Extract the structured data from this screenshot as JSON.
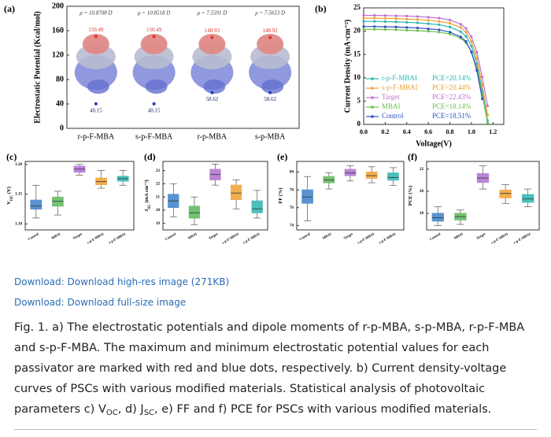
{
  "chart_data": [
    {
      "type": "dot",
      "panel": "(a)",
      "ylabel": "Electrostatic Potential (Kcal/mol)",
      "categories": [
        "r-p-F-MBA",
        "s-p-F-MBA",
        "r-p-MBA",
        "s-p-MBA"
      ],
      "dipole_labels": [
        "μ = 10.8708 D",
        "μ = 10.8518 D",
        "μ = 7.5591 D",
        "μ = 7.5653 D"
      ],
      "max_values": [
        150.49,
        150.49,
        148.93,
        148.92
      ],
      "min_values": [
        40.15,
        40.15,
        58.62,
        58.62
      ],
      "max_color": "#e0302a",
      "min_color": "#1f3fbf",
      "ylim": [
        0,
        200
      ],
      "yticks": [
        0,
        40,
        80,
        120,
        160,
        200
      ]
    },
    {
      "type": "line",
      "panel": "(b)",
      "xlabel": "Voltage(V)",
      "ylabel": "Current Density (mA·cm⁻²)",
      "x": [
        0,
        0.1,
        0.2,
        0.3,
        0.4,
        0.5,
        0.6,
        0.7,
        0.8,
        0.9,
        0.95,
        1.0,
        1.05,
        1.1,
        1.15,
        1.2
      ],
      "series": [
        {
          "name": "r-p-F-MBAI",
          "pce_label": "PCE=20.14%",
          "color": "#2bb5b0",
          "values": [
            22.1,
            22.1,
            22.05,
            22,
            21.9,
            21.8,
            21.6,
            21.4,
            20.9,
            19.9,
            18.9,
            16.8,
            13.0,
            7.2,
            0.8,
            null
          ]
        },
        {
          "name": "s-p-F-MBAI",
          "pce_label": "PCE=20.44%",
          "color": "#f0a030",
          "values": [
            22.8,
            22.8,
            22.75,
            22.7,
            22.6,
            22.5,
            22.35,
            22.1,
            21.7,
            20.8,
            19.8,
            17.8,
            14.2,
            8.5,
            2.0,
            null
          ]
        },
        {
          "name": "Target",
          "pce_label": "PCE=22.43%",
          "color": "#c070d0",
          "values": [
            23.4,
            23.4,
            23.35,
            23.3,
            23.25,
            23.15,
            23.0,
            22.8,
            22.4,
            21.5,
            20.6,
            18.8,
            15.5,
            10.2,
            4.0,
            null
          ]
        },
        {
          "name": "MBAI",
          "pce_label": "PCE=18.14%",
          "color": "#6cc04a",
          "values": [
            20.4,
            20.4,
            20.35,
            20.3,
            20.2,
            20.1,
            20.0,
            19.8,
            19.4,
            18.5,
            17.5,
            15.6,
            12.0,
            6.3,
            0.3,
            null
          ]
        },
        {
          "name": "Control",
          "pce_label": "PCE=18.51%",
          "color": "#3050c0",
          "values": [
            21.0,
            21.0,
            20.95,
            20.9,
            20.8,
            20.7,
            20.5,
            20.3,
            19.8,
            18.8,
            17.8,
            15.5,
            11.6,
            5.5,
            null,
            null
          ]
        }
      ],
      "legend": "lower left",
      "xlim": [
        0,
        1.3
      ],
      "xticks": [
        {
          "value": 0,
          "label": "0.0"
        },
        0.2,
        0.4,
        0.6,
        0.8,
        {
          "value": 1,
          "label": "1.0"
        },
        1.2
      ],
      "ylim": [
        0,
        25
      ],
      "yticks": [
        0,
        5,
        10,
        15,
        20,
        25
      ]
    },
    {
      "type": "box",
      "panel": "(c)",
      "ylabel_parts": [
        "V",
        "OC",
        " (V)"
      ],
      "categories": [
        "Control",
        "MBAI",
        "Target",
        "s-p-F-MBAI",
        "r-p-F-MBAI"
      ],
      "colors": [
        "#3d7fc8",
        "#5cb85c",
        "#b070d0",
        "#f0a030",
        "#2bb5b0"
      ],
      "boxes": [
        {
          "min": 1.11,
          "q1": 1.125,
          "median": 1.13,
          "q3": 1.14,
          "max": 1.165
        },
        {
          "min": 1.115,
          "q1": 1.13,
          "median": 1.138,
          "q3": 1.145,
          "max": 1.155
        },
        {
          "min": 1.182,
          "q1": 1.187,
          "median": 1.192,
          "q3": 1.197,
          "max": 1.2
        },
        {
          "min": 1.16,
          "q1": 1.166,
          "median": 1.171,
          "q3": 1.177,
          "max": 1.19
        },
        {
          "min": 1.165,
          "q1": 1.172,
          "median": 1.176,
          "q3": 1.18,
          "max": 1.19
        }
      ],
      "ylim": [
        1.09,
        1.205
      ],
      "yticks": [
        {
          "value": 1.1,
          "label": "1.10"
        },
        1.15,
        {
          "value": 1.2,
          "label": "1.20"
        }
      ]
    },
    {
      "type": "box",
      "panel": "(d)",
      "ylabel_parts": [
        "J",
        "SC",
        " (mA cm⁻²)"
      ],
      "categories": [
        "Control",
        "MBAI",
        "Target",
        "s-p-F-MBAI",
        "r-p-F-MBAI"
      ],
      "colors": [
        "#3d7fc8",
        "#5cb85c",
        "#b070d0",
        "#f0a030",
        "#2bb5b0"
      ],
      "boxes": [
        {
          "min": 19.5,
          "q1": 20.2,
          "median": 20.7,
          "q3": 21.2,
          "max": 22
        },
        {
          "min": 18.9,
          "q1": 19.4,
          "median": 19.8,
          "q3": 20.3,
          "max": 21
        },
        {
          "min": 21.9,
          "q1": 22.3,
          "median": 22.7,
          "q3": 23.1,
          "max": 23.5
        },
        {
          "min": 20.1,
          "q1": 20.8,
          "median": 21.3,
          "q3": 21.9,
          "max": 22.3
        },
        {
          "min": 19.4,
          "q1": 19.8,
          "median": 20.1,
          "q3": 20.7,
          "max": 21.5
        }
      ],
      "ylim": [
        18.5,
        23.7
      ],
      "yticks": [
        19,
        20,
        21,
        22,
        23
      ]
    },
    {
      "type": "box",
      "panel": "(e)",
      "ylabel_parts": [
        "FF (%)"
      ],
      "categories": [
        "Control",
        "MBAI",
        "Target",
        "s-p-F-MBAI",
        "r-p-F-MBAI"
      ],
      "colors": [
        "#3d7fc8",
        "#5cb85c",
        "#b070d0",
        "#f0a030",
        "#2bb5b0"
      ],
      "boxes": [
        {
          "min": 74.5,
          "q1": 76.5,
          "median": 77.2,
          "q3": 78,
          "max": 79.5
        },
        {
          "min": 78.1,
          "q1": 78.8,
          "median": 79.1,
          "q3": 79.5,
          "max": 79.9
        },
        {
          "min": 79,
          "q1": 79.6,
          "median": 79.9,
          "q3": 80.3,
          "max": 80.7
        },
        {
          "min": 78.8,
          "q1": 79.3,
          "median": 79.6,
          "q3": 80,
          "max": 80.6
        },
        {
          "min": 78.5,
          "q1": 79.1,
          "median": 79.4,
          "q3": 79.9,
          "max": 80.5
        }
      ],
      "ylim": [
        73.5,
        81.2
      ],
      "yticks": [
        74,
        76,
        78,
        80
      ]
    },
    {
      "type": "box",
      "panel": "(f)",
      "ylabel_parts": [
        "PCE (%)"
      ],
      "categories": [
        "Control",
        "MBAI",
        "Target",
        "s-p-F-MBAI",
        "r-p-F-MBAI"
      ],
      "colors": [
        "#3d7fc8",
        "#5cb85c",
        "#b070d0",
        "#f0a030",
        "#2bb5b0"
      ],
      "boxes": [
        {
          "min": 16.9,
          "q1": 17.3,
          "median": 17.6,
          "q3": 18,
          "max": 18.6
        },
        {
          "min": 17,
          "q1": 17.4,
          "median": 17.7,
          "q3": 18,
          "max": 18.3
        },
        {
          "min": 20.2,
          "q1": 20.8,
          "median": 21.2,
          "q3": 21.6,
          "max": 22.3
        },
        {
          "min": 18.9,
          "q1": 19.4,
          "median": 19.8,
          "q3": 20.1,
          "max": 20.6
        },
        {
          "min": 18.6,
          "q1": 19,
          "median": 19.3,
          "q3": 19.7,
          "max": 20.2
        }
      ],
      "ylim": [
        16.5,
        22.7
      ],
      "yticks": [
        18,
        20,
        22
      ]
    }
  ],
  "links": [
    "Download: Download high-res image (271KB)",
    "Download: Download full-size image"
  ],
  "caption": [
    {
      "text": "Fig. 1. a) The electrostatic potentials and dipole moments of r-p-MBA, s-p-MBA, r-p-F-MBA and s-p-F-MBA. The maximum and minimum electrostatic potential values for each passivator are marked with red and blue dots, respectively. b) Current density-voltage curves of PSCs with various modified materials. Statistical analysis of photovoltaic parameters c) V"
    },
    {
      "text": "OC",
      "sub": true
    },
    {
      "text": ", d) J"
    },
    {
      "text": "SC",
      "sub": true
    },
    {
      "text": ", e) FF and f) PCE for PSCs with various modified materials."
    }
  ]
}
